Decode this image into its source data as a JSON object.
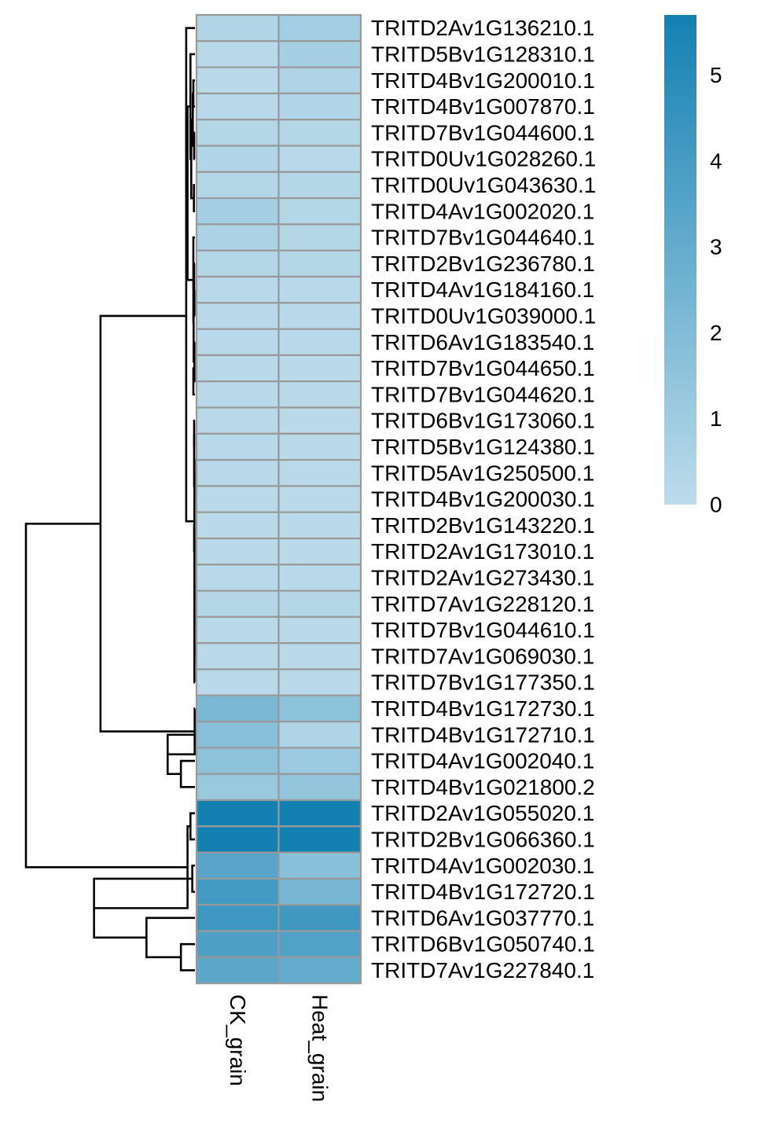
{
  "chart_data": {
    "type": "heatmap",
    "columns": [
      "CK_grain",
      "Heat_grain"
    ],
    "rows": [
      "TRITD2Av1G136210.1",
      "TRITD5Bv1G128310.1",
      "TRITD4Bv1G200010.1",
      "TRITD4Bv1G007870.1",
      "TRITD7Bv1G044600.1",
      "TRITD0Uv1G028260.1",
      "TRITD0Uv1G043630.1",
      "TRITD4Av1G002020.1",
      "TRITD7Bv1G044640.1",
      "TRITD2Bv1G236780.1",
      "TRITD4Av1G184160.1",
      "TRITD0Uv1G039000.1",
      "TRITD6Av1G183540.1",
      "TRITD7Bv1G044650.1",
      "TRITD7Bv1G044620.1",
      "TRITD6Bv1G173060.1",
      "TRITD5Bv1G124380.1",
      "TRITD5Av1G250500.1",
      "TRITD4Bv1G200030.1",
      "TRITD2Bv1G143220.1",
      "TRITD2Av1G173010.1",
      "TRITD2Av1G273430.1",
      "TRITD7Av1G228120.1",
      "TRITD7Bv1G044610.1",
      "TRITD7Av1G069030.1",
      "TRITD7Bv1G177350.1",
      "TRITD4Bv1G172730.1",
      "TRITD4Bv1G172710.1",
      "TRITD4Av1G002040.1",
      "TRITD4Bv1G021800.2",
      "TRITD2Av1G055020.1",
      "TRITD2Bv1G066360.1",
      "TRITD4Av1G002030.1",
      "TRITD4Bv1G172720.1",
      "TRITD6Av1G037770.1",
      "TRITD6Bv1G050740.1",
      "TRITD7Av1G227840.1"
    ],
    "values": [
      [
        0.4,
        0.9
      ],
      [
        0.2,
        0.8
      ],
      [
        0.1,
        0.5
      ],
      [
        0.2,
        0.4
      ],
      [
        0.3,
        0.3
      ],
      [
        0.4,
        0.2
      ],
      [
        0.3,
        0.3
      ],
      [
        0.8,
        0.3
      ],
      [
        0.6,
        0.3
      ],
      [
        0.3,
        0.3
      ],
      [
        0.2,
        0.2
      ],
      [
        0.2,
        0.2
      ],
      [
        0.2,
        0.2
      ],
      [
        0.2,
        0.1
      ],
      [
        0.2,
        0.1
      ],
      [
        0.2,
        0.1
      ],
      [
        0.2,
        0.1
      ],
      [
        0.2,
        0.1
      ],
      [
        0.1,
        0.1
      ],
      [
        0.1,
        0.1
      ],
      [
        0.1,
        0.1
      ],
      [
        0.2,
        0.2
      ],
      [
        0.3,
        0.3
      ],
      [
        0.2,
        0.1
      ],
      [
        0.1,
        0.1
      ],
      [
        0.1,
        0.1
      ],
      [
        2.2,
        1.6
      ],
      [
        1.8,
        0.5
      ],
      [
        1.6,
        1.1
      ],
      [
        1.2,
        1.4
      ],
      [
        5.7,
        5.7
      ],
      [
        5.7,
        5.7
      ],
      [
        3.4,
        1.7
      ],
      [
        4.1,
        2.3
      ],
      [
        4.3,
        4.2
      ],
      [
        3.7,
        3.6
      ],
      [
        3.3,
        3.0
      ]
    ],
    "color_scale": {
      "min": 0,
      "max": 5.7,
      "low_color": "#bddceb",
      "high_color": "#1380b2"
    },
    "legend_ticks": [
      0,
      1,
      2,
      3,
      4,
      5
    ],
    "legend_placement": "top-right",
    "cell_border_color": "#999999",
    "dendrogram": {
      "side": "left",
      "tree": [
        [
          [
            [
              0,
              [
                [
                  1,
                  [
                    [
                      [
                        2,
                        3
                      ],
                      [
                        4,
                        5
                      ]
                    ],
                    [
                      6,
                      7
                    ]
                  ]
                ],
                [
                  8,
                  [
                    [
                      9,
                      [
                        10,
                        11
                      ]
                    ],
                    [
                      12,
                      [
                        13,
                        14
                      ]
                    ]
                  ]
                ]
              ]
            ],
            [
              [
                [
                  15,
                  16
                ],
                [
                  17,
                  18
                ]
              ],
              [
                [
                  19,
                  20
                ],
                [
                  [
                    21,
                    22
                  ],
                  [
                    [
                      23,
                      24
                    ],
                    25
                  ]
                ]
              ]
            ]
          ],
          [
            26,
            [
              27,
              [
                28,
                29
              ]
            ]
          ]
        ],
        [
          [
            30,
            31
          ],
          [
            [
              32,
              33
            ],
            [
              34,
              [
                35,
                36
              ]
            ]
          ]
        ]
      ],
      "heights": [
        12.76,
        7.13,
        0.66,
        0.66,
        0.56,
        0.34,
        0.28,
        0.16,
        0.12,
        0.06,
        0.08,
        0.12,
        0.1,
        0.06,
        0.04,
        0.04,
        0.12,
        0.04,
        0.06,
        0.06,
        0.04,
        0.04,
        0.06,
        0.04,
        0.04,
        0.04,
        0.04,
        0.02,
        2.06,
        1.06,
        0.56,
        0.34,
        7.62,
        0.2,
        3.66,
        1.06,
        0.78,
        0.56,
        0.28
      ]
    }
  }
}
